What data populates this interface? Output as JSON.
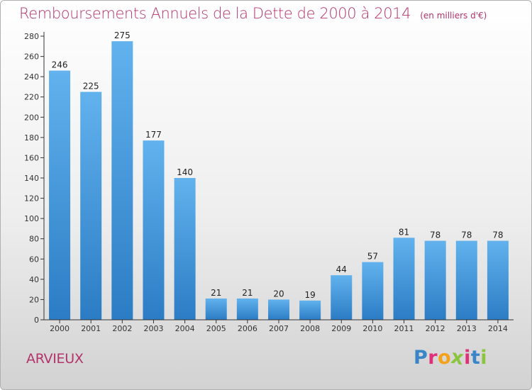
{
  "header": {
    "title": "Remboursements Annuels de la Dette de 2000 à 2014",
    "unit": "(en milliers d'€)"
  },
  "footer": {
    "commune": "ARVIEUX",
    "logo_text": "Proxiti"
  },
  "colors": {
    "title": "#b4336b",
    "bar_top": "#62b2ee",
    "bar_bottom": "#2b7cc4",
    "logo_letters": [
      "#3a85c7",
      "#e0307a",
      "#f2a31a",
      "#8bc43f",
      "#e0307a",
      "#3a85c7",
      "#8bc43f"
    ]
  },
  "chart_data": {
    "type": "bar",
    "categories": [
      "2000",
      "2001",
      "2002",
      "2003",
      "2004",
      "2005",
      "2006",
      "2007",
      "2008",
      "2009",
      "2010",
      "2011",
      "2012",
      "2013",
      "2014"
    ],
    "values": [
      246,
      225,
      275,
      177,
      140,
      21,
      21,
      20,
      19,
      44,
      57,
      81,
      78,
      78,
      78
    ],
    "title": "Remboursements Annuels de la Dette de 2000 à 2014",
    "ylabel": "",
    "xlabel": "",
    "ylim": [
      0,
      280
    ],
    "yticks": [
      0,
      20,
      40,
      60,
      80,
      100,
      120,
      140,
      160,
      180,
      200,
      220,
      240,
      260,
      280
    ],
    "grid": false,
    "data_labels": true
  }
}
